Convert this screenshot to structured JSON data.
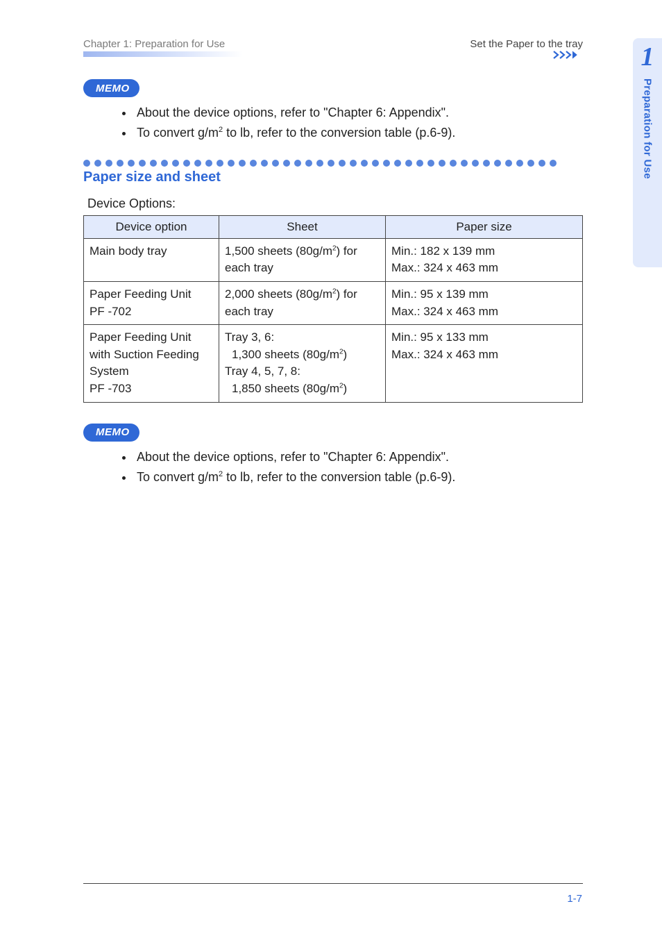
{
  "header": {
    "left": "Chapter 1: Preparation for Use",
    "right": "Set the Paper to the tray"
  },
  "memo_badge_label": "MEMO",
  "memo_top": {
    "items": [
      "About the device options, refer to \"Chapter 6: Appendix\".",
      "To convert g/m² to lb, refer to the conversion table (p.6-9)."
    ]
  },
  "dots": {
    "count": 43,
    "colors": {
      "outer_dark": "#2f68d6",
      "light": "#a9c0f3"
    }
  },
  "section": {
    "title": "Paper size and sheet",
    "sub_label": "Device Options:"
  },
  "table": {
    "headers": [
      "Device option",
      "Sheet",
      "Paper size"
    ],
    "header_bg": "#e2eafc",
    "border_color": "#444444",
    "rows": [
      {
        "option": "Main body tray",
        "sheet_html": "1,500 sheets (80g/m<sup>2</sup>) for each tray",
        "size": "Min.: 182 x 139 mm\nMax.: 324 x 463 mm"
      },
      {
        "option": "Paper Feeding Unit\nPF -702",
        "sheet_html": "2,000 sheets (80g/m<sup>2</sup>) for each tray",
        "size": "Min.: 95 x 139 mm\nMax.: 324 x 463 mm"
      },
      {
        "option": "Paper Feeding Unit with Suction Feeding System\nPF -703",
        "sheet_html": "Tray 3, 6:<br><span class=\"indent\">1,300 sheets (80g/m<sup>2</sup>)</span>Tray 4, 5, 7, 8:<br><span class=\"indent\">1,850 sheets (80g/m<sup>2</sup>)</span>",
        "size": "Min.: 95 x 133 mm\nMax.: 324 x 463 mm"
      }
    ]
  },
  "memo_bottom": {
    "items": [
      "About the device options, refer to \"Chapter 6: Appendix\".",
      "To convert g/m² to lb, refer to the conversion table (p.6-9)."
    ]
  },
  "side_tab": {
    "number": "1",
    "text": "Preparation for Use",
    "bg": "#e2eafc",
    "color": "#2f68d6"
  },
  "footer": {
    "page_num": "1-7",
    "color": "#2f68d6"
  }
}
